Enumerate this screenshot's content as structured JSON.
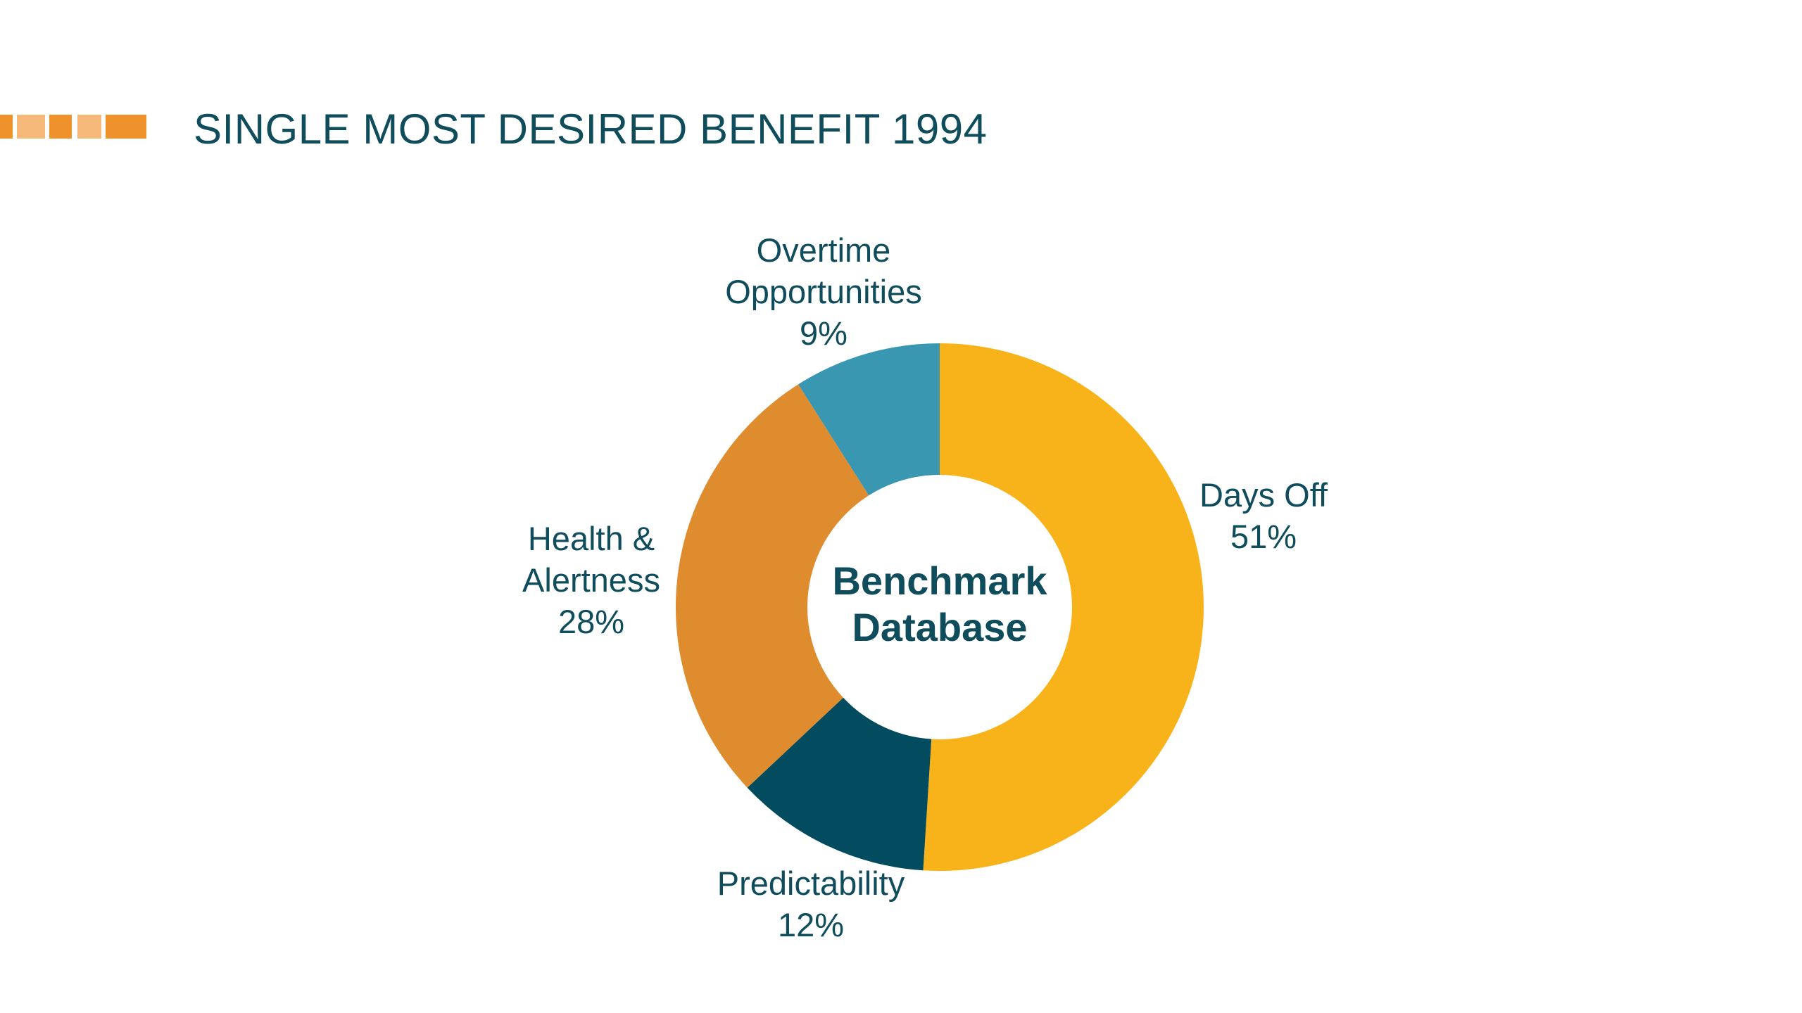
{
  "title": "SINGLE MOST DESIRED BENEFIT 1994",
  "colors": {
    "title": "#0f4c5c",
    "accent": "#f0922b",
    "accent_light": "#f7b97a",
    "label": "#0f4c5c",
    "center_text": "#0f4c5c"
  },
  "chart_data": {
    "type": "pie",
    "variant": "donut",
    "center_label": [
      "Benchmark",
      "Database"
    ],
    "slices": [
      {
        "label": [
          "Days Off"
        ],
        "value_label": "51%",
        "value": 51,
        "color": "#f9b31a"
      },
      {
        "label": [
          "Predictability"
        ],
        "value_label": "12%",
        "value": 12,
        "color": "#034b5f"
      },
      {
        "label": [
          "Health &",
          "Alertness"
        ],
        "value_label": "28%",
        "value": 28,
        "color": "#df8c2f"
      },
      {
        "label": [
          "Overtime",
          "Opportunities"
        ],
        "value_label": "9%",
        "value": 9,
        "color": "#3a97b1"
      }
    ]
  }
}
